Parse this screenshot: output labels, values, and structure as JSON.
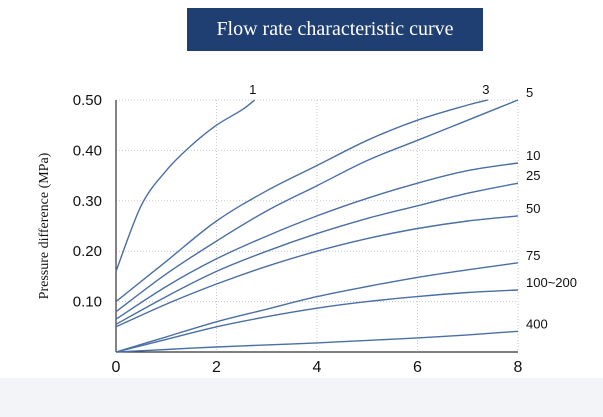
{
  "chart_data": {
    "type": "line",
    "title": "Flow rate characteristic curve",
    "xlabel": "",
    "ylabel": "Pressure difference (MPa)",
    "xlim": [
      0,
      8
    ],
    "ylim": [
      0,
      0.5
    ],
    "x_ticks": [
      "0",
      "2",
      "4",
      "6",
      "8"
    ],
    "y_ticks": [
      "0.10",
      "0.20",
      "0.30",
      "0.40",
      "0.50"
    ],
    "grid": true,
    "colors": {
      "curve": "#4a6fa5",
      "grid": "#c8c8c8",
      "axis": "#333333",
      "title_bg": "#1f3f73"
    },
    "series": [
      {
        "name": "1",
        "x": [
          0,
          0.5,
          1,
          1.5,
          2,
          2.5,
          2.76
        ],
        "y": [
          0.16,
          0.29,
          0.36,
          0.41,
          0.45,
          0.48,
          0.5
        ]
      },
      {
        "name": "3",
        "x": [
          0,
          1,
          2,
          3,
          4,
          5,
          6,
          7,
          7.4
        ],
        "y": [
          0.1,
          0.18,
          0.26,
          0.32,
          0.37,
          0.42,
          0.46,
          0.49,
          0.5
        ]
      },
      {
        "name": "5",
        "x": [
          0,
          1,
          2,
          3,
          4,
          5,
          6,
          7,
          8
        ],
        "y": [
          0.08,
          0.155,
          0.22,
          0.28,
          0.33,
          0.38,
          0.42,
          0.46,
          0.5
        ]
      },
      {
        "name": "10",
        "x": [
          0,
          1,
          2,
          3,
          4,
          5,
          6,
          7,
          8
        ],
        "y": [
          0.065,
          0.13,
          0.185,
          0.23,
          0.27,
          0.305,
          0.335,
          0.36,
          0.375
        ]
      },
      {
        "name": "25",
        "x": [
          0,
          1,
          2,
          3,
          4,
          5,
          6,
          7,
          8
        ],
        "y": [
          0.055,
          0.11,
          0.16,
          0.2,
          0.235,
          0.265,
          0.29,
          0.315,
          0.335
        ]
      },
      {
        "name": "50",
        "x": [
          0,
          1,
          2,
          3,
          4,
          5,
          6,
          7,
          8
        ],
        "y": [
          0.05,
          0.095,
          0.135,
          0.17,
          0.2,
          0.225,
          0.245,
          0.26,
          0.27
        ]
      },
      {
        "name": "75",
        "x": [
          0,
          1,
          2,
          3,
          4,
          5,
          6,
          7,
          8
        ],
        "y": [
          0.0,
          0.03,
          0.06,
          0.085,
          0.11,
          0.13,
          0.148,
          0.163,
          0.177
        ]
      },
      {
        "name": "100~200",
        "x": [
          0,
          1,
          2,
          3,
          4,
          5,
          6,
          7,
          8
        ],
        "y": [
          0.0,
          0.025,
          0.05,
          0.07,
          0.087,
          0.1,
          0.11,
          0.118,
          0.123
        ]
      },
      {
        "name": "400",
        "x": [
          0,
          1,
          2,
          3,
          4,
          5,
          6,
          7,
          8
        ],
        "y": [
          0.0,
          0.005,
          0.01,
          0.014,
          0.018,
          0.023,
          0.028,
          0.034,
          0.041
        ]
      }
    ]
  }
}
